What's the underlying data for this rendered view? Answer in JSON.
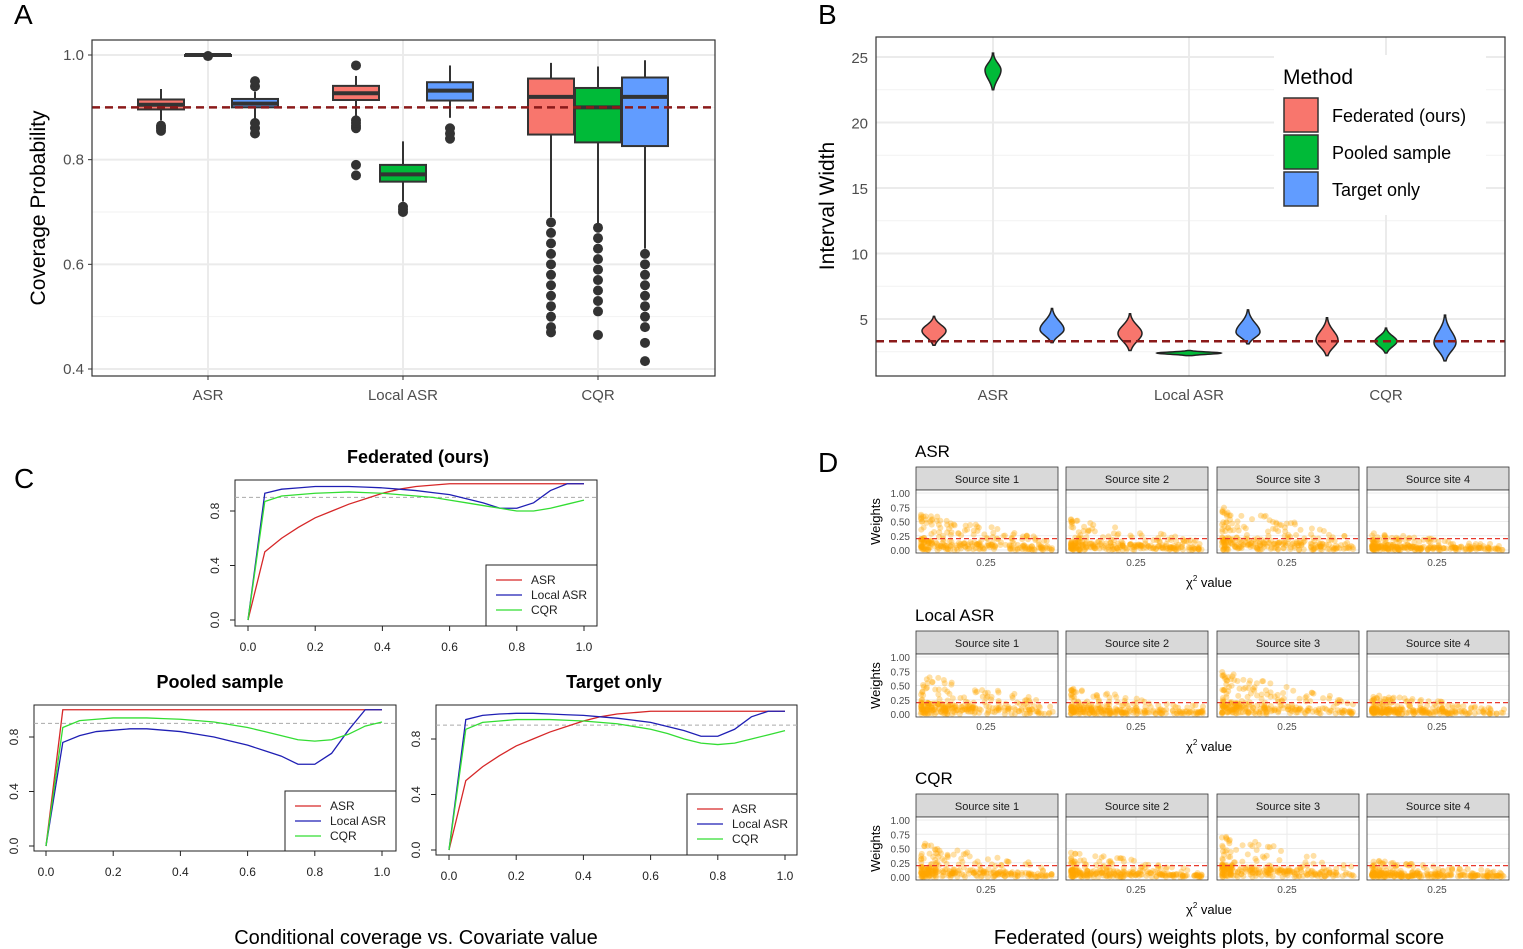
{
  "panel_labels": {
    "a": "A",
    "b": "B",
    "c": "C",
    "d": "D"
  },
  "colors": {
    "federated": "#F8766D",
    "pooled": "#00BA38",
    "target": "#619CFF",
    "reference": "#8B1A1A",
    "asr_line": "#D62728",
    "local_line": "#1F1FB4",
    "cqr_line": "#33DD33",
    "points": "#FFA500"
  },
  "captions": {
    "c": "Conditional coverage vs. Covariate value",
    "d": "Federated (ours) weights plots, by conformal score"
  },
  "chart_data": [
    {
      "id": "A",
      "type": "box",
      "ylabel": "Coverage Probability",
      "xlabel": "",
      "categories": [
        "ASR",
        "Local ASR",
        "CQR"
      ],
      "ylim": [
        0.39,
        1.03
      ],
      "yticks": [
        "0.4",
        "0.6",
        "0.8",
        "1.0"
      ],
      "grid": true,
      "reference_line": 0.9,
      "series": [
        {
          "name": "Federated (ours)",
          "boxes": [
            {
              "q1": 0.896,
              "median": 0.905,
              "q3": 0.915,
              "lo": 0.875,
              "hi": 0.935,
              "outliers": [
                0.855,
                0.86,
                0.865
              ]
            },
            {
              "q1": 0.914,
              "median": 0.927,
              "q3": 0.941,
              "lo": 0.875,
              "hi": 0.96,
              "outliers": [
                0.77,
                0.79,
                0.86,
                0.865,
                0.87,
                0.875,
                0.98
              ]
            },
            {
              "q1": 0.848,
              "median": 0.92,
              "q3": 0.955,
              "lo": 0.69,
              "hi": 0.985,
              "outliers": [
                0.47,
                0.48,
                0.5,
                0.52,
                0.54,
                0.56,
                0.58,
                0.6,
                0.62,
                0.64,
                0.66,
                0.68
              ]
            }
          ]
        },
        {
          "name": "Pooled sample",
          "boxes": [
            {
              "q1": 1.0,
              "median": 1.0,
              "q3": 1.0,
              "lo": 1.0,
              "hi": 1.0,
              "outliers": [
                0.998
              ]
            },
            {
              "q1": 0.758,
              "median": 0.772,
              "q3": 0.79,
              "lo": 0.72,
              "hi": 0.835,
              "outliers": [
                0.7,
                0.705,
                0.71
              ]
            },
            {
              "q1": 0.833,
              "median": 0.9,
              "q3": 0.937,
              "lo": 0.675,
              "hi": 0.978,
              "outliers": [
                0.465,
                0.51,
                0.53,
                0.55,
                0.57,
                0.59,
                0.61,
                0.63,
                0.65,
                0.67
              ]
            }
          ]
        },
        {
          "name": "Target only",
          "boxes": [
            {
              "q1": 0.9,
              "median": 0.907,
              "q3": 0.916,
              "lo": 0.87,
              "hi": 0.93,
              "outliers": [
                0.85,
                0.86,
                0.87,
                0.94,
                0.95
              ]
            },
            {
              "q1": 0.913,
              "median": 0.932,
              "q3": 0.948,
              "lo": 0.88,
              "hi": 0.98,
              "outliers": [
                0.84,
                0.85,
                0.86
              ]
            },
            {
              "q1": 0.826,
              "median": 0.92,
              "q3": 0.957,
              "lo": 0.63,
              "hi": 0.99,
              "outliers": [
                0.415,
                0.45,
                0.48,
                0.5,
                0.52,
                0.54,
                0.56,
                0.58,
                0.6,
                0.62
              ]
            }
          ]
        }
      ]
    },
    {
      "id": "B",
      "type": "violin",
      "ylabel": "Interval Width",
      "xlabel": "",
      "categories": [
        "ASR",
        "Local ASR",
        "CQR"
      ],
      "ylim": [
        0.6,
        26.5
      ],
      "yticks": [
        "5",
        "10",
        "15",
        "20",
        "25"
      ],
      "grid": true,
      "reference_line": 3.3,
      "legend": {
        "title": "Method",
        "position": "top-right",
        "entries": [
          "Federated (ours)",
          "Pooled sample",
          "Target only"
        ]
      },
      "series": [
        {
          "name": "Federated (ours)",
          "violins": [
            {
              "median": 4.1,
              "min": 3.0,
              "max": 5.2
            },
            {
              "median": 3.9,
              "min": 2.6,
              "max": 5.4
            },
            {
              "median": 3.4,
              "min": 2.2,
              "max": 5.1
            }
          ]
        },
        {
          "name": "Pooled sample",
          "violins": [
            {
              "median": 24.0,
              "min": 22.5,
              "max": 25.3
            },
            {
              "median": 2.4,
              "min": 2.2,
              "max": 2.6
            },
            {
              "median": 3.3,
              "min": 2.4,
              "max": 4.3
            }
          ]
        },
        {
          "name": "Target only",
          "violins": [
            {
              "median": 4.2,
              "min": 3.2,
              "max": 5.8
            },
            {
              "median": 4.0,
              "min": 3.1,
              "max": 5.7
            },
            {
              "median": 3.2,
              "min": 1.8,
              "max": 5.3
            }
          ]
        }
      ]
    },
    {
      "id": "C1",
      "type": "line",
      "title": "Federated (ours)",
      "xlim": [
        0,
        1
      ],
      "ylim": [
        0,
        1
      ],
      "xticks": [
        "0.0",
        "0.2",
        "0.4",
        "0.6",
        "0.8",
        "1.0"
      ],
      "yticks": [
        "0.0",
        "0.4",
        "0.8"
      ],
      "reference_line": 0.9,
      "legend": {
        "position": "bottom-right"
      },
      "x": [
        0,
        0.05,
        0.1,
        0.15,
        0.2,
        0.25,
        0.3,
        0.35,
        0.4,
        0.45,
        0.5,
        0.55,
        0.6,
        0.65,
        0.7,
        0.75,
        0.8,
        0.85,
        0.9,
        0.95,
        1.0
      ],
      "series": [
        {
          "name": "ASR",
          "values": [
            0,
            0.5,
            0.6,
            0.68,
            0.75,
            0.8,
            0.85,
            0.89,
            0.93,
            0.96,
            0.98,
            0.99,
            1,
            1,
            1,
            1,
            1,
            1,
            1,
            1,
            1
          ]
        },
        {
          "name": "Local ASR",
          "values": [
            0,
            0.93,
            0.96,
            0.97,
            0.98,
            0.98,
            0.98,
            0.975,
            0.97,
            0.96,
            0.95,
            0.935,
            0.92,
            0.89,
            0.86,
            0.82,
            0.82,
            0.86,
            0.95,
            1,
            1
          ]
        },
        {
          "name": "CQR",
          "values": [
            0,
            0.87,
            0.91,
            0.92,
            0.93,
            0.935,
            0.94,
            0.935,
            0.93,
            0.92,
            0.91,
            0.9,
            0.88,
            0.86,
            0.84,
            0.82,
            0.8,
            0.8,
            0.82,
            0.85,
            0.88
          ]
        }
      ]
    },
    {
      "id": "C2",
      "type": "line",
      "title": "Pooled sample",
      "xlim": [
        0,
        1
      ],
      "ylim": [
        0,
        1
      ],
      "xticks": [
        "0.0",
        "0.2",
        "0.4",
        "0.6",
        "0.8",
        "1.0"
      ],
      "yticks": [
        "0.0",
        "0.4",
        "0.8"
      ],
      "reference_line": 0.9,
      "legend": {
        "position": "bottom-right"
      },
      "x": [
        0,
        0.05,
        0.1,
        0.15,
        0.2,
        0.25,
        0.3,
        0.35,
        0.4,
        0.45,
        0.5,
        0.55,
        0.6,
        0.65,
        0.7,
        0.75,
        0.8,
        0.85,
        0.9,
        0.95,
        1.0
      ],
      "series": [
        {
          "name": "ASR",
          "values": [
            0,
            1,
            1,
            1,
            1,
            1,
            1,
            1,
            1,
            1,
            1,
            1,
            1,
            1,
            1,
            1,
            1,
            1,
            1,
            1,
            1
          ]
        },
        {
          "name": "Local ASR",
          "values": [
            0,
            0.76,
            0.81,
            0.84,
            0.85,
            0.86,
            0.86,
            0.85,
            0.84,
            0.82,
            0.8,
            0.77,
            0.74,
            0.7,
            0.66,
            0.6,
            0.6,
            0.68,
            0.85,
            1,
            1
          ]
        },
        {
          "name": "CQR",
          "values": [
            0,
            0.87,
            0.92,
            0.93,
            0.94,
            0.94,
            0.94,
            0.935,
            0.93,
            0.92,
            0.91,
            0.89,
            0.87,
            0.84,
            0.81,
            0.78,
            0.77,
            0.78,
            0.82,
            0.88,
            0.91
          ]
        }
      ]
    },
    {
      "id": "C3",
      "type": "line",
      "title": "Target only",
      "xlim": [
        0,
        1
      ],
      "ylim": [
        0,
        1
      ],
      "xticks": [
        "0.0",
        "0.2",
        "0.4",
        "0.6",
        "0.8",
        "1.0"
      ],
      "yticks": [
        "0.0",
        "0.4",
        "0.8"
      ],
      "reference_line": 0.9,
      "legend": {
        "position": "bottom-right"
      },
      "x": [
        0,
        0.05,
        0.1,
        0.15,
        0.2,
        0.25,
        0.3,
        0.35,
        0.4,
        0.45,
        0.5,
        0.55,
        0.6,
        0.65,
        0.7,
        0.75,
        0.8,
        0.85,
        0.9,
        0.95,
        1.0
      ],
      "series": [
        {
          "name": "ASR",
          "values": [
            0,
            0.5,
            0.6,
            0.68,
            0.75,
            0.8,
            0.85,
            0.89,
            0.93,
            0.96,
            0.98,
            0.99,
            1,
            1,
            1,
            1,
            1,
            1,
            1,
            1,
            1
          ]
        },
        {
          "name": "Local ASR",
          "values": [
            0,
            0.94,
            0.97,
            0.98,
            0.985,
            0.985,
            0.98,
            0.975,
            0.97,
            0.96,
            0.95,
            0.935,
            0.92,
            0.89,
            0.86,
            0.82,
            0.82,
            0.87,
            0.96,
            1,
            1
          ]
        },
        {
          "name": "CQR",
          "values": [
            0,
            0.87,
            0.92,
            0.93,
            0.94,
            0.94,
            0.94,
            0.935,
            0.93,
            0.92,
            0.91,
            0.89,
            0.87,
            0.84,
            0.8,
            0.77,
            0.76,
            0.77,
            0.8,
            0.83,
            0.86
          ]
        }
      ]
    },
    {
      "id": "D",
      "type": "scatter",
      "rows": [
        "ASR",
        "Local ASR",
        "CQR"
      ],
      "facets": [
        "Source site 1",
        "Source site 2",
        "Source site 3",
        "Source site 4"
      ],
      "ylabel": "Weights",
      "xlabel_prefix": "χ",
      "xlabel_sup": "2",
      "xlabel_suffix": " value",
      "yticks": [
        "0.00",
        "0.25",
        "0.50",
        "0.75",
        "1.00"
      ],
      "xticks": [
        "0.25"
      ],
      "ylim": [
        0,
        1
      ],
      "reference_line": 0.2,
      "grid": true
    }
  ]
}
